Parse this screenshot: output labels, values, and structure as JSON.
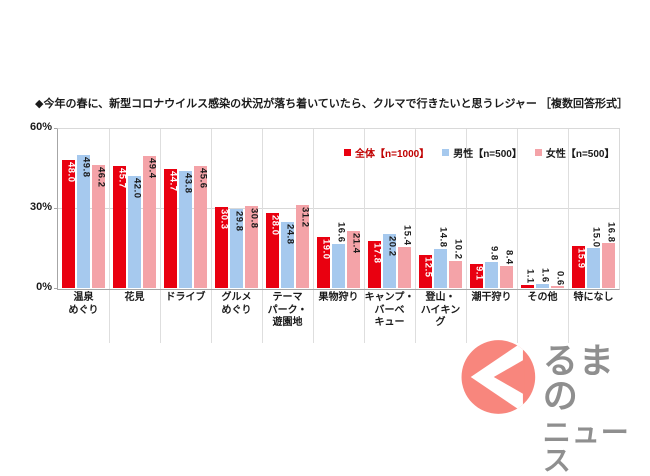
{
  "title": "◆今年の春に、新型コロナウイルス感染の状況が落ち着いていたら、クルマで行きたいと思うレジャー ［複数回答形式］",
  "y_axis": {
    "labels": [
      "60%",
      "30%",
      "0%"
    ]
  },
  "legend": {
    "items": [
      {
        "label": "全体【n=1000】",
        "swatch": "#e90010",
        "text_color": "#c00000"
      },
      {
        "label": "男性【n=500】",
        "swatch": "#a6c9ee",
        "text_color": "#1a1a1a"
      },
      {
        "label": "女性【n=500】",
        "swatch": "#f4a3a8",
        "text_color": "#1a1a1a"
      }
    ]
  },
  "chart_data": {
    "type": "bar",
    "title": "今年の春に、新型コロナウイルス感染の状況が落ち着いていたら、クルマで行きたいと思うレジャー（複数回答形式）",
    "categories": [
      "温泉めぐり",
      "花見",
      "ドライブ",
      "グルメめぐり",
      "テーマパーク・遊園地",
      "果物狩り",
      "キャンプ・バーベキュー",
      "登山・ハイキング",
      "潮干狩り",
      "その他",
      "特になし"
    ],
    "category_lines": [
      [
        "温泉",
        "めぐり"
      ],
      [
        "花見"
      ],
      [
        "ドライブ"
      ],
      [
        "グルメ",
        "めぐり"
      ],
      [
        "テーマ",
        "パーク・",
        "遊園地"
      ],
      [
        "果物狩り"
      ],
      [
        "キャンプ・",
        "バーベ",
        "キュー"
      ],
      [
        "登山・",
        "ハイキン",
        "グ"
      ],
      [
        "潮干狩り"
      ],
      [
        "その他"
      ],
      [
        "特になし"
      ]
    ],
    "series": [
      {
        "name": "全体",
        "color": "#e90010",
        "values": [
          48.0,
          45.7,
          44.7,
          30.3,
          28.0,
          19.0,
          17.8,
          12.5,
          9.1,
          1.1,
          15.9
        ]
      },
      {
        "name": "男性",
        "color": "#a6c9ee",
        "values": [
          49.8,
          42.0,
          43.8,
          29.8,
          24.8,
          16.6,
          20.2,
          14.8,
          9.8,
          1.6,
          15.0
        ]
      },
      {
        "name": "女性",
        "color": "#f4a3a8",
        "values": [
          46.2,
          49.4,
          45.6,
          30.8,
          31.2,
          21.4,
          15.4,
          10.2,
          8.4,
          0.6,
          16.8
        ]
      }
    ],
    "ylim": [
      0,
      60
    ],
    "y_ticks": [
      0,
      30,
      60
    ],
    "grid": "horizontal gridline at 30%, vertical separators between categories",
    "legend_position": "top-right inside plot",
    "value_label_style": "rotated 90° clockwise at bar end; white inside red bars, black on blue/pink bars and above short bars"
  },
  "logo": {
    "name": "くるまのニュース",
    "line1": "るまの",
    "line2": "ニュース"
  }
}
